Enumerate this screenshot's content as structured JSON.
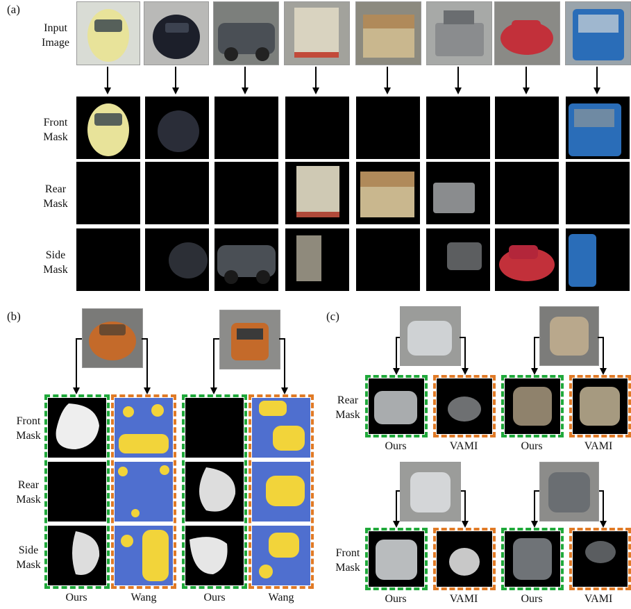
{
  "panels": {
    "a": "(a)",
    "b": "(b)",
    "c": "(c)"
  },
  "a_rows": {
    "input": [
      "Input",
      "Image"
    ],
    "front": [
      "Front",
      "Mask"
    ],
    "rear": [
      "Rear",
      "Mask"
    ],
    "side": [
      "Side",
      "Mask"
    ]
  },
  "b_rows": {
    "front": [
      "Front",
      "Mask"
    ],
    "rear": [
      "Rear",
      "Mask"
    ],
    "side": [
      "Side",
      "Mask"
    ]
  },
  "b_captions": [
    "Ours",
    "Wang",
    "Ours",
    "Wang"
  ],
  "c_rows": {
    "rear": [
      "Rear",
      "Mask"
    ],
    "front": [
      "Front",
      "Mask"
    ]
  },
  "c_captions_top": [
    "Ours",
    "VAMI",
    "Ours",
    "VAMI"
  ],
  "c_captions_bottom": [
    "Ours",
    "VAMI",
    "Ours",
    "VAMI"
  ],
  "colors": {
    "ours_border": "#1fa83a",
    "other_border": "#e07a26",
    "heat_blue": "#4f6fcf",
    "heat_yellow": "#f2d43a"
  },
  "vehicle_colors": [
    "#e8e39a",
    "#1c1f2a",
    "#4a4f55",
    "#d9d3c0",
    "#b08a5a",
    "#8a8c8e",
    "#c2303a",
    "#2a6db8"
  ]
}
